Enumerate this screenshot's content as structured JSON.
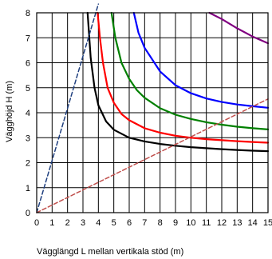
{
  "chart_data": {
    "type": "line",
    "xlabel": "Vägglängd L mellan vertikala stöd (m)",
    "ylabel": "Vägghöjd H (m)",
    "xlim": [
      0,
      15
    ],
    "ylim": [
      0,
      8
    ],
    "x_ticks": [
      "0",
      "1",
      "2",
      "3",
      "4",
      "5",
      "6",
      "7",
      "8",
      "9",
      "10",
      "11",
      "12",
      "13",
      "14",
      "15"
    ],
    "y_ticks": [
      "0",
      "1",
      "2",
      "3",
      "4",
      "5",
      "6",
      "7",
      "8"
    ],
    "grid": true,
    "legend": "none",
    "series": [
      {
        "color": "#000000",
        "style": "solid",
        "points": [
          [
            3.3,
            8
          ],
          [
            3.5,
            6.2
          ],
          [
            3.75,
            5.0
          ],
          [
            4,
            4.3
          ],
          [
            4.5,
            3.65
          ],
          [
            5,
            3.32
          ],
          [
            6,
            3.0
          ],
          [
            7,
            2.85
          ],
          [
            8,
            2.75
          ],
          [
            9,
            2.68
          ],
          [
            10,
            2.62
          ],
          [
            11,
            2.58
          ],
          [
            12,
            2.54
          ],
          [
            13,
            2.51
          ],
          [
            14,
            2.48
          ],
          [
            15,
            2.46
          ]
        ]
      },
      {
        "color": "#ff0000",
        "style": "solid",
        "points": [
          [
            3.95,
            8
          ],
          [
            4.1,
            7.0
          ],
          [
            4.3,
            6.0
          ],
          [
            4.6,
            5.0
          ],
          [
            5,
            4.4
          ],
          [
            5.5,
            3.95
          ],
          [
            6,
            3.7
          ],
          [
            7,
            3.38
          ],
          [
            8,
            3.2
          ],
          [
            9,
            3.08
          ],
          [
            10,
            3.0
          ],
          [
            11,
            2.94
          ],
          [
            12,
            2.9
          ],
          [
            13,
            2.86
          ],
          [
            14,
            2.83
          ],
          [
            15,
            2.8
          ]
        ]
      },
      {
        "color": "#008000",
        "style": "solid",
        "points": [
          [
            4.85,
            8
          ],
          [
            5.1,
            7.0
          ],
          [
            5.5,
            6.0
          ],
          [
            6,
            5.35
          ],
          [
            6.5,
            4.9
          ],
          [
            7,
            4.6
          ],
          [
            8,
            4.18
          ],
          [
            9,
            3.92
          ],
          [
            10,
            3.75
          ],
          [
            11,
            3.62
          ],
          [
            12,
            3.52
          ],
          [
            13,
            3.44
          ],
          [
            14,
            3.38
          ],
          [
            15,
            3.33
          ]
        ]
      },
      {
        "color": "#0000ff",
        "style": "solid",
        "points": [
          [
            6.3,
            8
          ],
          [
            6.6,
            7.2
          ],
          [
            7,
            6.6
          ],
          [
            8,
            5.65
          ],
          [
            9,
            5.1
          ],
          [
            10,
            4.78
          ],
          [
            11,
            4.57
          ],
          [
            12,
            4.43
          ],
          [
            13,
            4.33
          ],
          [
            14,
            4.26
          ],
          [
            15,
            4.2
          ]
        ]
      },
      {
        "color": "#800080",
        "style": "solid",
        "points": [
          [
            11.2,
            8
          ],
          [
            12,
            7.75
          ],
          [
            13,
            7.38
          ],
          [
            14,
            7.05
          ],
          [
            15,
            6.78
          ]
        ]
      },
      {
        "color": "#1f3f7f",
        "style": "dashed",
        "points": [
          [
            0,
            0
          ],
          [
            4,
            8.35
          ]
        ]
      },
      {
        "color": "#c0504d",
        "style": "dashed",
        "points": [
          [
            0,
            0
          ],
          [
            15,
            4.55
          ]
        ]
      }
    ]
  }
}
